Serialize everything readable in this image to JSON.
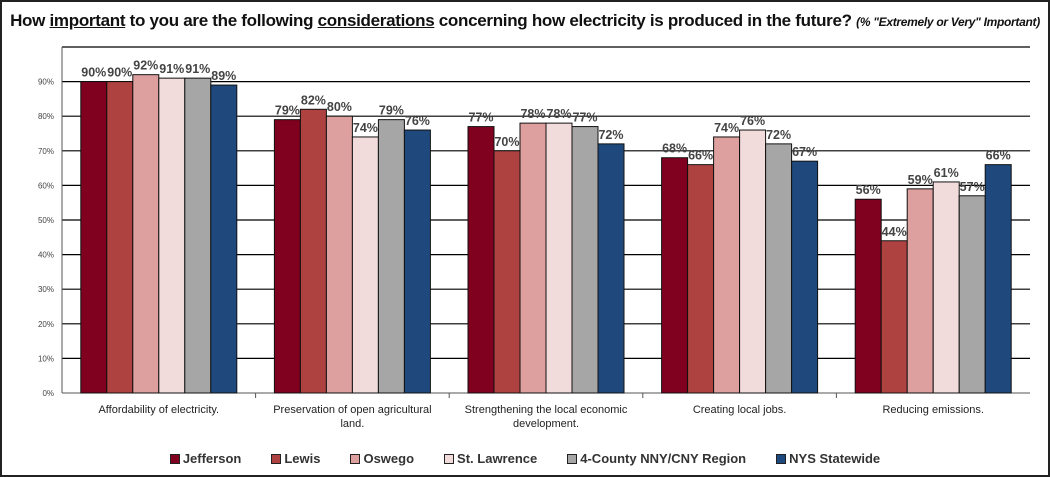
{
  "chart_data": {
    "type": "bar",
    "title_parts": {
      "p1": "How ",
      "u1": "important",
      "p2": " to you are the following ",
      "u2": "considerations",
      "p3": " concerning how electricity is produced in the future? ",
      "subtitle": "(% \"Extremely or Very\" Important)"
    },
    "categories": [
      "Affordability of electricity.",
      "Preservation of open agricultural land.",
      "Strengthening the local economic development.",
      "Creating local jobs.",
      "Reducing emissions."
    ],
    "category_lines": [
      [
        "Affordability of electricity."
      ],
      [
        "Preservation of open agricultural",
        "land."
      ],
      [
        "Strengthening the local economic",
        "development."
      ],
      [
        "Creating local jobs."
      ],
      [
        "Reducing emissions."
      ]
    ],
    "series": [
      {
        "name": "Jefferson",
        "color": "#800020",
        "values": [
          90,
          79,
          77,
          68,
          56
        ]
      },
      {
        "name": "Lewis",
        "color": "#AE4240",
        "values": [
          90,
          82,
          70,
          66,
          44
        ]
      },
      {
        "name": "Oswego",
        "color": "#DDA09E",
        "values": [
          92,
          80,
          78,
          74,
          59
        ]
      },
      {
        "name": "St. Lawrence",
        "color": "#F2DCDB",
        "values": [
          91,
          74,
          78,
          76,
          61
        ]
      },
      {
        "name": "4-County NNY/CNY Region",
        "color": "#A6A6A6",
        "values": [
          91,
          79,
          77,
          72,
          57
        ]
      },
      {
        "name": "NYS Statewide",
        "color": "#1F497D",
        "values": [
          89,
          76,
          72,
          67,
          66
        ]
      }
    ],
    "yticks": [
      "0%",
      "10%",
      "20%",
      "30%",
      "40%",
      "50%",
      "60%",
      "70%",
      "80%",
      "90%"
    ],
    "ylim": [
      0,
      100
    ],
    "grid": true,
    "legend": "bottom",
    "data_labels": true
  }
}
